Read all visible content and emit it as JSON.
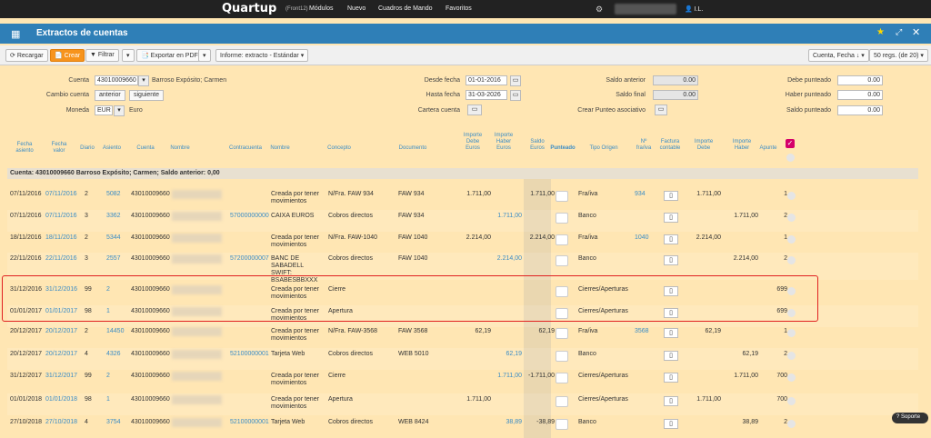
{
  "topbar": {
    "logo": "Quartup",
    "logo_sub": "(Front12)",
    "nav": [
      "Módulos",
      "Nuevo",
      "Cuadros de Mando",
      "Favoritos"
    ],
    "user": "I.L."
  },
  "window": {
    "title": "Extractos de cuentas"
  },
  "toolbar": {
    "recargar": "Recargar",
    "crear": "Crear",
    "filtrar": "Filtrar",
    "exportar": "Exportar en PDF",
    "informe": "Informe: extracto - Estándar",
    "orden": "Cuenta, Fecha",
    "regs": "50 regs. (de 20)"
  },
  "form": {
    "cuenta_label": "Cuenta",
    "cuenta_value": "43010009660",
    "cuenta_name": "Barroso Expósito; Carmen",
    "cambio_label": "Cambio cuenta",
    "anterior": "anterior",
    "siguiente": "siguiente",
    "moneda_label": "Moneda",
    "moneda_value": "EUR",
    "moneda_name": "Euro",
    "desde_label": "Desde fecha",
    "desde_value": "01-01-2016",
    "hasta_label": "Hasta fecha",
    "hasta_value": "31-03-2026",
    "cartera_label": "Cartera cuenta",
    "saldo_ant_label": "Saldo anterior",
    "saldo_ant_value": "0.00",
    "saldo_fin_label": "Saldo final",
    "saldo_fin_value": "0.00",
    "crear_punteo_label": "Crear Punteo asociativo",
    "debe_punt_label": "Debe punteado",
    "debe_punt_value": "0.00",
    "haber_punt_label": "Haber punteado",
    "haber_punt_value": "0.00",
    "saldo_punt_label": "Saldo punteado",
    "saldo_punt_value": "0.00"
  },
  "columns": {
    "fecha_asiento": "Fecha asiento",
    "fecha_valor": "Fecha valor",
    "diario": "Diario",
    "asiento": "Asiento",
    "cuenta": "Cuenta",
    "nombre": "Nombre",
    "contracuenta": "Contracuenta",
    "nombre2": "Nombre",
    "concepto": "Concepto",
    "documento": "Documento",
    "importe_debe": "Importe Debe Euros",
    "importe_haber": "Importe Haber Euros",
    "saldo": "Saldo Euros",
    "punteado": "Punteado",
    "tipo_origen": "Tipo Origen",
    "n_fra": "Nº fra/iva",
    "factura": "Factura contable",
    "imp_debe": "Importe Debe",
    "imp_haber": "Importe Haber",
    "apunte": "Apunte"
  },
  "group_label": "Cuenta: 43010009660 Barroso Expósito; Carmen; Saldo anterior: 0,00",
  "rows": [
    {
      "fa": "07/11/2016",
      "fv": "07/11/2016",
      "d": "2",
      "as": "5082",
      "c": "43010009660",
      "cc": "",
      "n2": "Creada por tener movimientos",
      "con": "N/Fra. FAW 934",
      "doc": "FAW 934",
      "deb": "1.711,00",
      "hab": "",
      "sal": "1.711,00",
      "tipo": "Fra/iva",
      "nfra": "934",
      "idebe": "1.711,00",
      "ihaber": "",
      "ap": "1"
    },
    {
      "fa": "07/11/2016",
      "fv": "07/11/2016",
      "d": "3",
      "as": "3362",
      "c": "43010009660",
      "cc": "57000000000",
      "n2": "CAIXA EUROS",
      "con": "Cobros directos",
      "doc": "FAW 934",
      "deb": "",
      "hab": "1.711,00",
      "sal": "",
      "tipo": "Banco",
      "nfra": "",
      "idebe": "",
      "ihaber": "1.711,00",
      "ap": "2"
    },
    {
      "fa": "18/11/2016",
      "fv": "18/11/2016",
      "d": "2",
      "as": "5344",
      "c": "43010009660",
      "cc": "",
      "n2": "Creada por tener movimientos",
      "con": "N/Fra. FAW-1040",
      "doc": "FAW 1040",
      "deb": "2.214,00",
      "hab": "",
      "sal": "2.214,00",
      "tipo": "Fra/iva",
      "nfra": "1040",
      "idebe": "2.214,00",
      "ihaber": "",
      "ap": "1"
    },
    {
      "fa": "22/11/2016",
      "fv": "22/11/2016",
      "d": "3",
      "as": "2557",
      "c": "43010009660",
      "cc": "57200000007",
      "n2": "BANC DE SABADELL SWIFT: BSABESBBXXX",
      "con": "Cobros directos",
      "doc": "FAW 1040",
      "deb": "",
      "hab": "2.214,00",
      "sal": "",
      "tipo": "Banco",
      "nfra": "",
      "idebe": "",
      "ihaber": "2.214,00",
      "ap": "2"
    },
    {
      "fa": "31/12/2016",
      "fv": "31/12/2016",
      "d": "99",
      "as": "2",
      "c": "43010009660",
      "cc": "",
      "n2": "Creada por tener movimientos",
      "con": "Cierre",
      "doc": "",
      "deb": "",
      "hab": "",
      "sal": "",
      "tipo": "Cierres/Aperturas",
      "nfra": "",
      "idebe": "",
      "ihaber": "",
      "ap": "699"
    },
    {
      "fa": "01/01/2017",
      "fv": "01/01/2017",
      "d": "98",
      "as": "1",
      "c": "43010009660",
      "cc": "",
      "n2": "Creada por tener movimientos",
      "con": "Apertura",
      "doc": "",
      "deb": "",
      "hab": "",
      "sal": "",
      "tipo": "Cierres/Aperturas",
      "nfra": "",
      "idebe": "",
      "ihaber": "",
      "ap": "699"
    },
    {
      "fa": "20/12/2017",
      "fv": "20/12/2017",
      "d": "2",
      "as": "14450",
      "c": "43010009660",
      "cc": "",
      "n2": "Creada por tener movimientos",
      "con": "N/Fra. FAW-3568",
      "doc": "FAW 3568",
      "deb": "62,19",
      "hab": "",
      "sal": "62,19",
      "tipo": "Fra/iva",
      "nfra": "3568",
      "idebe": "62,19",
      "ihaber": "",
      "ap": "1"
    },
    {
      "fa": "20/12/2017",
      "fv": "20/12/2017",
      "d": "4",
      "as": "4326",
      "c": "43010009660",
      "cc": "52100000001",
      "n2": "Tarjeta Web",
      "con": "Cobros directos",
      "doc": "WEB 5010",
      "deb": "",
      "hab": "62,19",
      "sal": "",
      "tipo": "Banco",
      "nfra": "",
      "idebe": "",
      "ihaber": "62,19",
      "ap": "2"
    },
    {
      "fa": "31/12/2017",
      "fv": "31/12/2017",
      "d": "99",
      "as": "2",
      "c": "43010009660",
      "cc": "",
      "n2": "Creada por tener movimientos",
      "con": "Cierre",
      "doc": "",
      "deb": "",
      "hab": "1.711,00",
      "sal": "-1.711,00",
      "tipo": "Cierres/Aperturas",
      "nfra": "",
      "idebe": "",
      "ihaber": "1.711,00",
      "ap": "700"
    },
    {
      "fa": "01/01/2018",
      "fv": "01/01/2018",
      "d": "98",
      "as": "1",
      "c": "43010009660",
      "cc": "",
      "n2": "Creada por tener movimientos",
      "con": "Apertura",
      "doc": "",
      "deb": "1.711,00",
      "hab": "",
      "sal": "",
      "tipo": "Cierres/Aperturas",
      "nfra": "",
      "idebe": "1.711,00",
      "ihaber": "",
      "ap": "700"
    },
    {
      "fa": "27/10/2018",
      "fv": "27/10/2018",
      "d": "4",
      "as": "3754",
      "c": "43010009660",
      "cc": "52100000001",
      "n2": "Tarjeta Web",
      "con": "Cobros directos",
      "doc": "WEB 8424",
      "deb": "",
      "hab": "38,89",
      "sal": "-38,89",
      "tipo": "Banco",
      "nfra": "",
      "idebe": "",
      "ihaber": "38,89",
      "ap": "2"
    }
  ],
  "soporte": "Soporte"
}
